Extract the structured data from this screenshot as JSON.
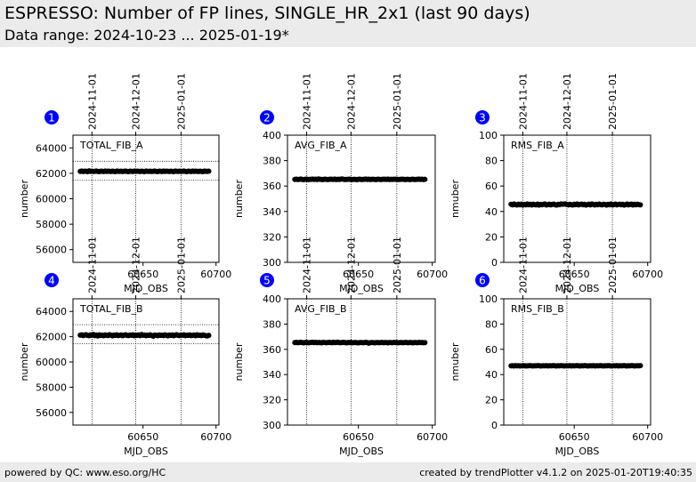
{
  "header": {
    "title": "ESPRESSO: Number of FP lines, SINGLE_HR_2x1 (last 90 days)",
    "subtitle": "Data range: 2024-10-23 ... 2025-01-19*"
  },
  "footer": {
    "left": "powered by QC: www.eso.org/HC",
    "right": "created by trendPlotter v4.1.2 on 2025-01-20T19:40:35"
  },
  "colors": {
    "marker": "#000000",
    "badge": "#0000ff",
    "panel_bg": "#ffffff",
    "header_bg": "#ebebeb"
  },
  "chart_data": [
    {
      "type": "scatter",
      "badge": "1",
      "label": "TOTAL_FIB_A",
      "xlabel": "MJD_OBS",
      "ylabel": "number",
      "xlim": [
        60602,
        60702
      ],
      "ylim": [
        55000,
        65000
      ],
      "xticks": [
        60650,
        60700
      ],
      "yticks": [
        56000,
        58000,
        60000,
        62000,
        64000
      ],
      "top_ticks": [
        {
          "x": 60615,
          "label": "2024-11-01"
        },
        {
          "x": 60645,
          "label": "2024-12-01"
        },
        {
          "x": 60676,
          "label": "2025-01-01"
        }
      ],
      "hlines": [
        62950,
        61450
      ],
      "series": [
        {
          "x_start": 60607,
          "x_end": 60695,
          "step": 1,
          "y": [
            62150,
            62180,
            62140,
            62170,
            62160,
            62130,
            62190,
            62150,
            62170,
            62140,
            62160,
            62180,
            62150,
            62130,
            62170,
            62160,
            62140,
            62180,
            62150,
            62170,
            62160,
            62140,
            62170,
            62150,
            62130,
            62180,
            62160,
            62150,
            62170,
            62140,
            62160,
            62180,
            62150,
            62130,
            62170,
            62160,
            62140,
            62180,
            62150,
            62170,
            62160,
            62140,
            62170,
            62150,
            62130,
            62180,
            62160,
            62150,
            62170,
            62140,
            62160,
            62180,
            62150,
            62130,
            62170,
            62160,
            62140,
            62180,
            62150,
            62170,
            62160,
            62140,
            62170,
            62150,
            62130,
            62180,
            62160,
            62150,
            62170,
            62140,
            62160,
            62180,
            62150,
            62130,
            62170,
            62160,
            62140,
            62180,
            62150,
            62170,
            62160,
            62140,
            62170,
            62150,
            62130,
            62180,
            62160,
            62150,
            62170
          ]
        }
      ]
    },
    {
      "type": "scatter",
      "badge": "2",
      "label": "AVG_FIB_A",
      "xlabel": "MJD_OBS",
      "ylabel": "number",
      "xlim": [
        60602,
        60702
      ],
      "ylim": [
        300,
        400
      ],
      "xticks": [
        60650,
        60700
      ],
      "yticks": [
        300,
        320,
        340,
        360,
        380,
        400
      ],
      "top_ticks": [
        {
          "x": 60615,
          "label": "2024-11-01"
        },
        {
          "x": 60645,
          "label": "2024-12-01"
        },
        {
          "x": 60676,
          "label": "2025-01-01"
        }
      ],
      "hlines": [],
      "series": [
        {
          "x_start": 60607,
          "x_end": 60695,
          "step": 1,
          "y": [
            365.2,
            365.4,
            365.1,
            365.3,
            365.5,
            365.2,
            365.0,
            365.3,
            365.4,
            365.1,
            365.2,
            365.3,
            365.5,
            365.2,
            365.4,
            365.1,
            365.6,
            365.3,
            365.2,
            365.0,
            365.4,
            365.3,
            365.1,
            365.2,
            365.4,
            365.3,
            365.2,
            365.5,
            365.1,
            365.3,
            365.2,
            365.4,
            365.6,
            365.3,
            365.1,
            365.2,
            365.3,
            365.4,
            365.2,
            365.1,
            365.3,
            365.2,
            365.0,
            365.3,
            365.4,
            365.1,
            365.2,
            365.3,
            365.5,
            365.2,
            365.4,
            365.1,
            365.3,
            365.3,
            365.2,
            365.0,
            365.4,
            365.3,
            365.1,
            365.2,
            365.4,
            365.3,
            365.2,
            365.5,
            365.1,
            365.3,
            365.2,
            365.4,
            365.3,
            365.3,
            365.1,
            365.2,
            365.3,
            365.4,
            365.2,
            365.1,
            365.3,
            365.2,
            365.0,
            365.3,
            365.4,
            365.1,
            365.2,
            365.3,
            365.5,
            365.2,
            365.4,
            365.1,
            365.3
          ]
        }
      ]
    },
    {
      "type": "scatter",
      "badge": "3",
      "label": "RMS_FIB_A",
      "xlabel": "MJD_OBS",
      "ylabel": "nmuber",
      "xlim": [
        60602,
        60702
      ],
      "ylim": [
        0,
        100
      ],
      "xticks": [
        60650,
        60700
      ],
      "yticks": [
        0,
        20,
        40,
        60,
        80,
        100
      ],
      "top_ticks": [
        {
          "x": 60615,
          "label": "2024-11-01"
        },
        {
          "x": 60645,
          "label": "2024-12-01"
        },
        {
          "x": 60676,
          "label": "2025-01-01"
        }
      ],
      "hlines": [],
      "series": [
        {
          "x_start": 60607,
          "x_end": 60695,
          "step": 1,
          "y": [
            45.6,
            45.2,
            45.9,
            45.4,
            45.1,
            45.7,
            45.3,
            45.8,
            45.0,
            45.5,
            45.2,
            45.9,
            45.3,
            45.6,
            45.1,
            45.7,
            45.4,
            45.2,
            45.8,
            45.0,
            45.5,
            45.3,
            45.6,
            45.9,
            45.1,
            45.4,
            45.7,
            45.2,
            45.5,
            45.8,
            45.3,
            45.0,
            45.6,
            45.4,
            45.9,
            45.7,
            45.8,
            46.0,
            45.5,
            45.2,
            45.6,
            45.3,
            45.1,
            45.7,
            45.4,
            45.9,
            45.2,
            45.5,
            45.8,
            45.3,
            45.6,
            45.0,
            45.4,
            45.7,
            45.2,
            45.9,
            45.5,
            45.1,
            45.6,
            45.3,
            45.8,
            45.4,
            45.2,
            45.7,
            45.5,
            45.0,
            45.6,
            45.3,
            45.9,
            45.1,
            45.4,
            45.8,
            45.2,
            45.5,
            45.7,
            45.3,
            45.6,
            45.0,
            45.4,
            45.9,
            45.2,
            45.5,
            45.8,
            45.1,
            45.6,
            45.3,
            45.7,
            45.4,
            45.2
          ]
        }
      ]
    },
    {
      "type": "scatter",
      "badge": "4",
      "label": "TOTAL_FIB_B",
      "xlabel": "MJD_OBS",
      "ylabel": "number",
      "xlim": [
        60602,
        60702
      ],
      "ylim": [
        55000,
        65000
      ],
      "xticks": [
        60650,
        60700
      ],
      "yticks": [
        56000,
        58000,
        60000,
        62000,
        64000
      ],
      "top_ticks": [
        {
          "x": 60615,
          "label": "2024-11-01"
        },
        {
          "x": 60645,
          "label": "2024-12-01"
        },
        {
          "x": 60676,
          "label": "2025-01-01"
        }
      ],
      "hlines": [
        62950,
        61450
      ],
      "series": [
        {
          "x_start": 60607,
          "x_end": 60695,
          "step": 1,
          "y": [
            62120,
            62150,
            62090,
            62130,
            62160,
            62100,
            62080,
            62140,
            62110,
            62170,
            62090,
            62130,
            62060,
            62150,
            62100,
            62120,
            62080,
            62140,
            62110,
            62090,
            62160,
            62120,
            62070,
            62130,
            62100,
            62150,
            62090,
            62110,
            62140,
            62080,
            62120,
            62160,
            62100,
            62090,
            62130,
            62110,
            62150,
            62080,
            62120,
            62100,
            62140,
            62090,
            62170,
            62110,
            62130,
            62080,
            62120,
            62100,
            62150,
            62090,
            62040,
            62130,
            62110,
            62080,
            62140,
            62100,
            62120,
            62090,
            62150,
            62110,
            62070,
            62130,
            62100,
            62140,
            62080,
            62120,
            62160,
            62100,
            62090,
            62130,
            62110,
            62150,
            62080,
            62120,
            62100,
            62140,
            62090,
            62110,
            62130,
            62080,
            62150,
            62100,
            62120,
            62090,
            62140,
            62110,
            62080,
            62060,
            62100
          ]
        }
      ]
    },
    {
      "type": "scatter",
      "badge": "5",
      "label": "AVG_FIB_B",
      "xlabel": "MJD_OBS",
      "ylabel": "number",
      "xlim": [
        60602,
        60702
      ],
      "ylim": [
        300,
        400
      ],
      "xticks": [
        60650,
        60700
      ],
      "yticks": [
        300,
        320,
        340,
        360,
        380,
        400
      ],
      "top_ticks": [
        {
          "x": 60615,
          "label": "2024-11-01"
        },
        {
          "x": 60645,
          "label": "2024-12-01"
        },
        {
          "x": 60676,
          "label": "2025-01-01"
        }
      ],
      "hlines": [],
      "series": [
        {
          "x_start": 60607,
          "x_end": 60695,
          "step": 1,
          "y": [
            365.3,
            365.5,
            365.2,
            365.4,
            365.6,
            365.3,
            365.1,
            365.4,
            365.5,
            365.2,
            365.3,
            365.4,
            365.6,
            365.3,
            365.5,
            365.2,
            365.4,
            365.3,
            365.1,
            365.5,
            365.4,
            365.2,
            365.3,
            365.5,
            365.4,
            365.2,
            365.6,
            365.3,
            365.4,
            365.7,
            365.3,
            365.2,
            365.4,
            365.5,
            365.3,
            365.1,
            365.4,
            365.3,
            365.5,
            365.2,
            365.3,
            365.4,
            365.2,
            365.1,
            365.3,
            365.4,
            365.2,
            365.3,
            365.5,
            365.3,
            364.9,
            365.2,
            365.4,
            365.3,
            365.1,
            365.3,
            365.4,
            365.2,
            365.3,
            365.5,
            365.2,
            365.4,
            365.3,
            365.1,
            365.4,
            365.3,
            365.2,
            365.5,
            365.3,
            365.4,
            365.2,
            365.3,
            365.4,
            365.2,
            365.3,
            365.5,
            365.3,
            365.2,
            365.4,
            365.3,
            365.1,
            365.4,
            365.3,
            365.2,
            365.5,
            365.3,
            365.4,
            365.2,
            365.3
          ]
        }
      ]
    },
    {
      "type": "scatter",
      "badge": "6",
      "label": "RMS_FIB_B",
      "xlabel": "MJD_OBS",
      "ylabel": "nmuber",
      "xlim": [
        60602,
        60702
      ],
      "ylim": [
        0,
        100
      ],
      "xticks": [
        60650,
        60700
      ],
      "yticks": [
        0,
        20,
        40,
        60,
        80,
        100
      ],
      "top_ticks": [
        {
          "x": 60615,
          "label": "2024-11-01"
        },
        {
          "x": 60645,
          "label": "2024-12-01"
        },
        {
          "x": 60676,
          "label": "2025-01-01"
        }
      ],
      "hlines": [],
      "series": [
        {
          "x_start": 60607,
          "x_end": 60695,
          "step": 1,
          "y": [
            46.9,
            47.0,
            46.8,
            47.1,
            46.9,
            47.0,
            46.8,
            46.9,
            47.1,
            47.0,
            46.8,
            46.9,
            47.0,
            47.1,
            46.9,
            46.8,
            47.0,
            46.9,
            47.1,
            47.0,
            46.8,
            46.9,
            47.0,
            46.9,
            47.1,
            46.8,
            47.0,
            46.9,
            47.0,
            47.1,
            46.9,
            46.8,
            47.0,
            46.9,
            47.1,
            47.0,
            46.8,
            46.9,
            47.0,
            46.9,
            47.1,
            46.8,
            47.0,
            46.9,
            47.0,
            47.1,
            46.9,
            46.8,
            47.0,
            46.9,
            47.1,
            47.0,
            46.8,
            46.9,
            47.0,
            46.9,
            47.1,
            46.8,
            47.0,
            46.9,
            47.0,
            47.1,
            46.9,
            46.8,
            47.0,
            46.9,
            47.1,
            47.0,
            46.8,
            46.9,
            47.0,
            46.9,
            47.1,
            46.8,
            47.0,
            46.9,
            47.0,
            47.1,
            46.9,
            46.8,
            47.0,
            46.9,
            47.1,
            47.0,
            46.8,
            46.9,
            47.0,
            46.9,
            47.1
          ]
        }
      ]
    }
  ]
}
